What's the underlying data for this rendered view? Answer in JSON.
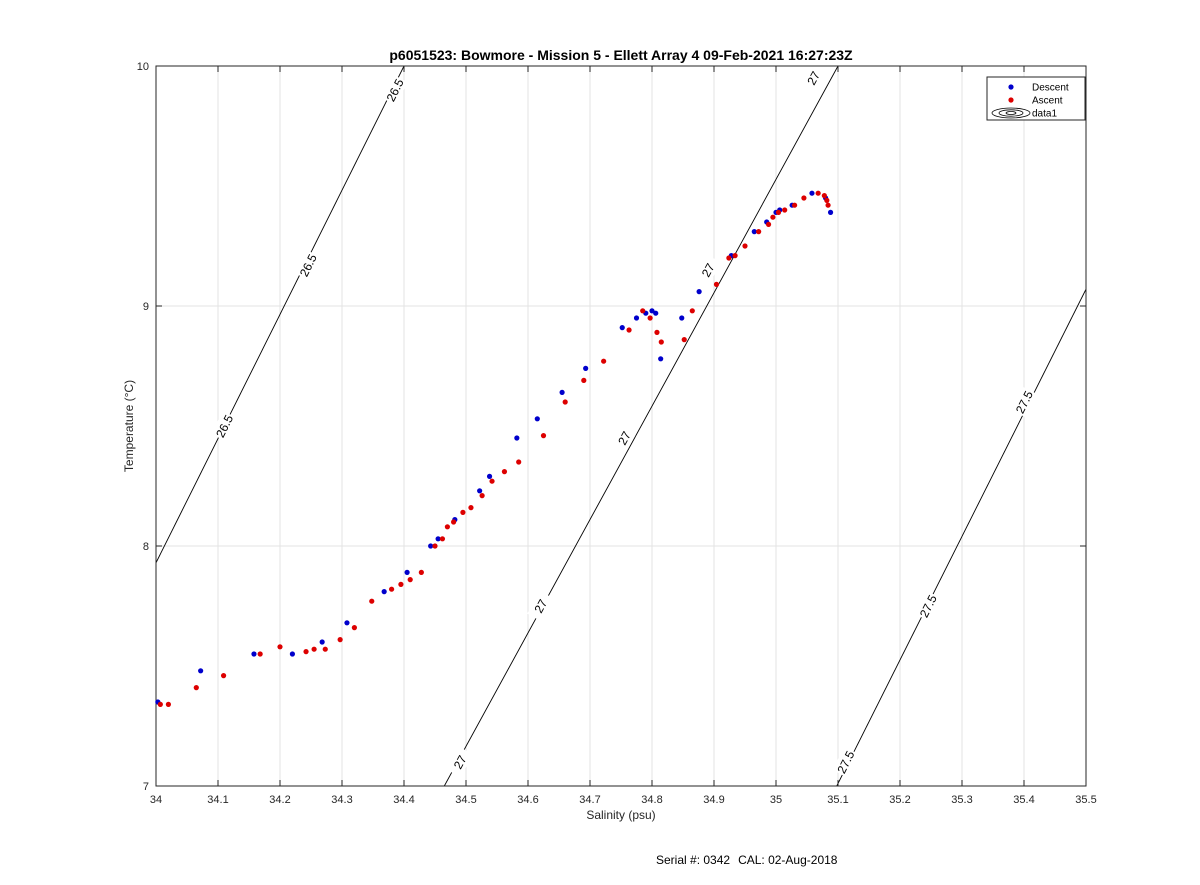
{
  "chart_data": {
    "type": "scatter",
    "title": "p6051523: Bowmore - Mission 5 - Ellett Array 4 09-Feb-2021 16:27:23Z",
    "xlabel": "Salinity (psu)",
    "ylabel": "Temperature (°C)",
    "xlim": [
      34,
      35.5
    ],
    "ylim": [
      7,
      10
    ],
    "xticks": [
      "34",
      "34.1",
      "34.2",
      "34.3",
      "34.4",
      "34.5",
      "34.6",
      "34.7",
      "34.8",
      "34.9",
      "35",
      "35.1",
      "35.2",
      "35.3",
      "35.4",
      "35.5"
    ],
    "yticks": [
      "7",
      "8",
      "9",
      "10"
    ],
    "grid": true,
    "legend_position": "top-right",
    "series": [
      {
        "name": "Descent",
        "color": "#0000cc",
        "points": [
          [
            34.003,
            7.35
          ],
          [
            34.072,
            7.48
          ],
          [
            34.158,
            7.55
          ],
          [
            34.22,
            7.55
          ],
          [
            34.268,
            7.6
          ],
          [
            34.308,
            7.68
          ],
          [
            34.368,
            7.81
          ],
          [
            34.405,
            7.89
          ],
          [
            34.443,
            8.0
          ],
          [
            34.455,
            8.03
          ],
          [
            34.482,
            8.11
          ],
          [
            34.522,
            8.23
          ],
          [
            34.538,
            8.29
          ],
          [
            34.582,
            8.45
          ],
          [
            34.615,
            8.53
          ],
          [
            34.655,
            8.64
          ],
          [
            34.693,
            8.74
          ],
          [
            34.752,
            8.91
          ],
          [
            34.775,
            8.95
          ],
          [
            34.79,
            8.97
          ],
          [
            34.8,
            8.98
          ],
          [
            34.806,
            8.97
          ],
          [
            34.814,
            8.78
          ],
          [
            34.848,
            8.95
          ],
          [
            34.876,
            9.06
          ],
          [
            34.928,
            9.21
          ],
          [
            34.965,
            9.31
          ],
          [
            34.985,
            9.35
          ],
          [
            35.0,
            9.39
          ],
          [
            35.006,
            9.4
          ],
          [
            35.026,
            9.42
          ],
          [
            35.058,
            9.47
          ],
          [
            35.08,
            9.45
          ],
          [
            35.088,
            9.39
          ]
        ]
      },
      {
        "name": "Ascent",
        "color": "#dd0000",
        "points": [
          [
            34.007,
            7.34
          ],
          [
            34.02,
            7.34
          ],
          [
            34.065,
            7.41
          ],
          [
            34.109,
            7.46
          ],
          [
            34.168,
            7.55
          ],
          [
            34.2,
            7.58
          ],
          [
            34.242,
            7.56
          ],
          [
            34.255,
            7.57
          ],
          [
            34.273,
            7.57
          ],
          [
            34.297,
            7.61
          ],
          [
            34.32,
            7.66
          ],
          [
            34.348,
            7.77
          ],
          [
            34.38,
            7.82
          ],
          [
            34.395,
            7.84
          ],
          [
            34.41,
            7.86
          ],
          [
            34.428,
            7.89
          ],
          [
            34.45,
            8.0
          ],
          [
            34.462,
            8.03
          ],
          [
            34.47,
            8.08
          ],
          [
            34.48,
            8.1
          ],
          [
            34.495,
            8.14
          ],
          [
            34.508,
            8.16
          ],
          [
            34.526,
            8.21
          ],
          [
            34.542,
            8.27
          ],
          [
            34.562,
            8.31
          ],
          [
            34.585,
            8.35
          ],
          [
            34.625,
            8.46
          ],
          [
            34.66,
            8.6
          ],
          [
            34.69,
            8.69
          ],
          [
            34.722,
            8.77
          ],
          [
            34.763,
            8.9
          ],
          [
            34.785,
            8.98
          ],
          [
            34.797,
            8.95
          ],
          [
            34.808,
            8.89
          ],
          [
            34.815,
            8.85
          ],
          [
            34.852,
            8.86
          ],
          [
            34.865,
            8.98
          ],
          [
            34.904,
            9.09
          ],
          [
            34.924,
            9.2
          ],
          [
            34.934,
            9.21
          ],
          [
            34.95,
            9.25
          ],
          [
            34.972,
            9.31
          ],
          [
            34.988,
            9.34
          ],
          [
            34.995,
            9.37
          ],
          [
            35.004,
            9.39
          ],
          [
            35.014,
            9.4
          ],
          [
            35.03,
            9.42
          ],
          [
            35.045,
            9.45
          ],
          [
            35.068,
            9.47
          ],
          [
            35.078,
            9.46
          ],
          [
            35.082,
            9.44
          ],
          [
            35.084,
            9.42
          ]
        ]
      }
    ],
    "contours": [
      {
        "level": "26.5",
        "line": [
          [
            34,
            7.93
          ],
          [
            34.4,
            10
          ]
        ],
        "labels": [
          [
            34.11,
            8.5
          ],
          [
            34.245,
            9.17
          ],
          [
            34.385,
            9.9
          ]
        ]
      },
      {
        "level": "27",
        "line": [
          [
            34.465,
            7
          ],
          [
            35.1,
            10
          ]
        ],
        "labels": [
          [
            34.49,
            7.1
          ],
          [
            34.62,
            7.75
          ],
          [
            34.755,
            8.45
          ],
          [
            34.89,
            9.15
          ],
          [
            35.06,
            9.95
          ]
        ]
      },
      {
        "level": "27.5",
        "line": [
          [
            35.098,
            7
          ],
          [
            35.5,
            9.07
          ]
        ],
        "labels": [
          [
            35.112,
            7.1
          ],
          [
            35.245,
            7.75
          ],
          [
            35.4,
            8.6
          ]
        ]
      }
    ],
    "legend_entries": [
      "Descent",
      "Ascent",
      "data1"
    ]
  },
  "footer": {
    "serial": "Serial #: 0342",
    "cal": "CAL: 02-Aug-2018"
  }
}
